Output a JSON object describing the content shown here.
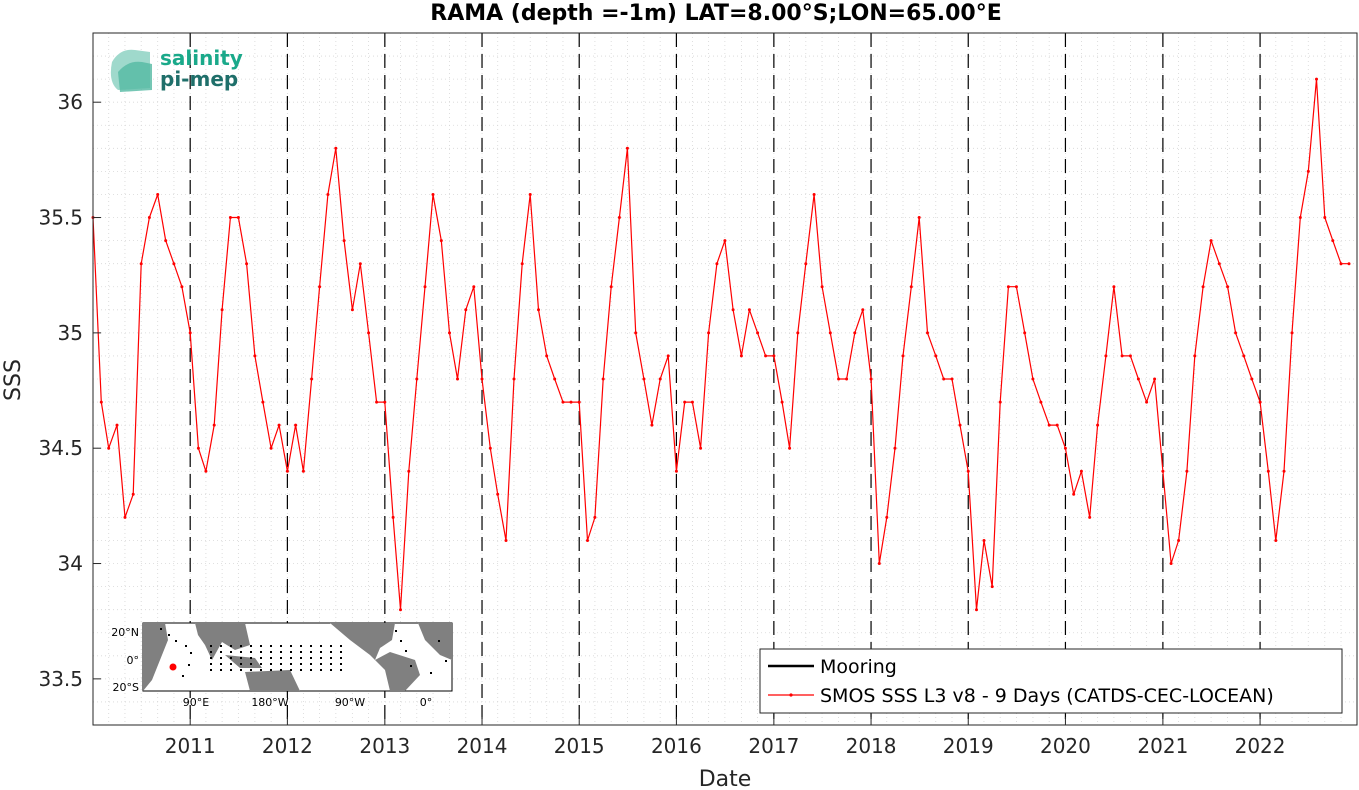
{
  "chart_data": {
    "type": "line",
    "title": "RAMA (depth =-1m) LAT=8.00°S;LON=65.00°E",
    "xlabel": "Date",
    "ylabel": "SSS",
    "xlim": [
      "2010-01-01",
      "2022-12-31"
    ],
    "ylim": [
      33.3,
      36.3
    ],
    "x_tick_labels": [
      "2011",
      "2012",
      "2013",
      "2014",
      "2015",
      "2016",
      "2017",
      "2018",
      "2019",
      "2020",
      "2021",
      "2022"
    ],
    "y_tick_labels": [
      "33.5",
      "34",
      "34.5",
      "35",
      "35.5",
      "36"
    ],
    "grid": "on (dotted minor grid)",
    "year_markers": [
      "2011-01-01",
      "2012-01-01",
      "2013-01-01",
      "2014-01-01",
      "2015-01-01",
      "2016-01-01",
      "2017-01-01",
      "2018-01-01",
      "2019-01-01",
      "2020-01-01",
      "2021-01-01",
      "2022-01-01"
    ],
    "legend_position": "bottom-right",
    "series": [
      {
        "name": "Mooring",
        "color": "#000000",
        "x": [],
        "values": []
      },
      {
        "name": "SMOS SSS L3 v8 - 9 Days (CATDS-CEC-LOCEAN)",
        "color": "#ff0000",
        "x": [
          "2010-01-01",
          "2010-02-01",
          "2010-03-01",
          "2010-04-01",
          "2010-05-01",
          "2010-06-01",
          "2010-07-01",
          "2010-08-01",
          "2010-09-01",
          "2010-10-01",
          "2010-11-01",
          "2010-12-01",
          "2011-01-01",
          "2011-02-01",
          "2011-03-01",
          "2011-04-01",
          "2011-05-01",
          "2011-06-01",
          "2011-07-01",
          "2011-08-01",
          "2011-09-01",
          "2011-10-01",
          "2011-11-01",
          "2011-12-01",
          "2012-01-01",
          "2012-02-01",
          "2012-03-01",
          "2012-04-01",
          "2012-05-01",
          "2012-06-01",
          "2012-07-01",
          "2012-08-01",
          "2012-09-01",
          "2012-10-01",
          "2012-11-01",
          "2012-12-01",
          "2013-01-01",
          "2013-02-01",
          "2013-03-01",
          "2013-04-01",
          "2013-05-01",
          "2013-06-01",
          "2013-07-01",
          "2013-08-01",
          "2013-09-01",
          "2013-10-01",
          "2013-11-01",
          "2013-12-01",
          "2014-01-01",
          "2014-02-01",
          "2014-03-01",
          "2014-04-01",
          "2014-05-01",
          "2014-06-01",
          "2014-07-01",
          "2014-08-01",
          "2014-09-01",
          "2014-10-01",
          "2014-11-01",
          "2014-12-01",
          "2015-01-01",
          "2015-02-01",
          "2015-03-01",
          "2015-04-01",
          "2015-05-01",
          "2015-06-01",
          "2015-07-01",
          "2015-08-01",
          "2015-09-01",
          "2015-10-01",
          "2015-11-01",
          "2015-12-01",
          "2016-01-01",
          "2016-02-01",
          "2016-03-01",
          "2016-04-01",
          "2016-05-01",
          "2016-06-01",
          "2016-07-01",
          "2016-08-01",
          "2016-09-01",
          "2016-10-01",
          "2016-11-01",
          "2016-12-01",
          "2017-01-01",
          "2017-02-01",
          "2017-03-01",
          "2017-04-01",
          "2017-05-01",
          "2017-06-01",
          "2017-07-01",
          "2017-08-01",
          "2017-09-01",
          "2017-10-01",
          "2017-11-01",
          "2017-12-01",
          "2018-01-01",
          "2018-02-01",
          "2018-03-01",
          "2018-04-01",
          "2018-05-01",
          "2018-06-01",
          "2018-07-01",
          "2018-08-01",
          "2018-09-01",
          "2018-10-01",
          "2018-11-01",
          "2018-12-01",
          "2019-01-01",
          "2019-02-01",
          "2019-03-01",
          "2019-04-01",
          "2019-05-01",
          "2019-06-01",
          "2019-07-01",
          "2019-08-01",
          "2019-09-01",
          "2019-10-01",
          "2019-11-01",
          "2019-12-01",
          "2020-01-01",
          "2020-02-01",
          "2020-03-01",
          "2020-04-01",
          "2020-05-01",
          "2020-06-01",
          "2020-07-01",
          "2020-08-01",
          "2020-09-01",
          "2020-10-01",
          "2020-11-01",
          "2020-12-01",
          "2021-01-01",
          "2021-02-01",
          "2021-03-01",
          "2021-04-01",
          "2021-05-01",
          "2021-06-01",
          "2021-07-01",
          "2021-08-01",
          "2021-09-01",
          "2021-10-01",
          "2021-11-01",
          "2021-12-01",
          "2022-01-01",
          "2022-02-01",
          "2022-03-01",
          "2022-04-01",
          "2022-05-01",
          "2022-06-01",
          "2022-07-01",
          "2022-08-01",
          "2022-09-01",
          "2022-10-01",
          "2022-11-01",
          "2022-12-01"
        ],
        "values": [
          35.5,
          34.7,
          34.5,
          34.6,
          34.2,
          34.3,
          35.3,
          35.5,
          35.6,
          35.4,
          35.3,
          35.2,
          35.0,
          34.5,
          34.4,
          34.6,
          35.1,
          35.5,
          35.5,
          35.3,
          34.9,
          34.7,
          34.5,
          34.6,
          34.4,
          34.6,
          34.4,
          34.8,
          35.2,
          35.6,
          35.8,
          35.4,
          35.1,
          35.3,
          35.0,
          34.7,
          34.7,
          34.2,
          33.8,
          34.4,
          34.8,
          35.2,
          35.6,
          35.4,
          35.0,
          34.8,
          35.1,
          35.2,
          34.8,
          34.5,
          34.3,
          34.1,
          34.8,
          35.3,
          35.6,
          35.1,
          34.9,
          34.8,
          34.7,
          34.7,
          34.7,
          34.1,
          34.2,
          34.8,
          35.2,
          35.5,
          35.8,
          35.0,
          34.8,
          34.6,
          34.8,
          34.9,
          34.4,
          34.7,
          34.7,
          34.5,
          35.0,
          35.3,
          35.4,
          35.1,
          34.9,
          35.1,
          35.0,
          34.9,
          34.9,
          34.7,
          34.5,
          35.0,
          35.3,
          35.6,
          35.2,
          35.0,
          34.8,
          34.8,
          35.0,
          35.1,
          34.8,
          34.0,
          34.2,
          34.5,
          34.9,
          35.2,
          35.5,
          35.0,
          34.9,
          34.8,
          34.8,
          34.6,
          34.4,
          33.8,
          34.1,
          33.9,
          34.7,
          35.2,
          35.2,
          35.0,
          34.8,
          34.7,
          34.6,
          34.6,
          34.5,
          34.3,
          34.4,
          34.2,
          34.6,
          34.9,
          35.2,
          34.9,
          34.9,
          34.8,
          34.7,
          34.8,
          34.4,
          34.0,
          34.1,
          34.4,
          34.9,
          35.2,
          35.4,
          35.3,
          35.2,
          35.0,
          34.9,
          34.8,
          34.7,
          34.4,
          34.1,
          34.4,
          35.0,
          35.5,
          35.7,
          36.1,
          35.5,
          35.4,
          35.3,
          35.3
        ]
      }
    ],
    "legend": [
      "Mooring",
      "SMOS SSS L3 v8 - 9 Days (CATDS-CEC-LOCEAN)"
    ]
  },
  "logo": {
    "line1": "salinity",
    "line2": "pi-mep",
    "color_line1": "#1aa98a",
    "color_line2": "#1f6f6a"
  },
  "inset_map": {
    "lat_labels": [
      "20°N",
      "0°",
      "20°S"
    ],
    "lon_labels": [
      "90°E",
      "180°W",
      "90°W",
      "0°"
    ],
    "land_color": "#808080",
    "ocean_color": "#ffffff",
    "marker_color": "#ff0000"
  }
}
